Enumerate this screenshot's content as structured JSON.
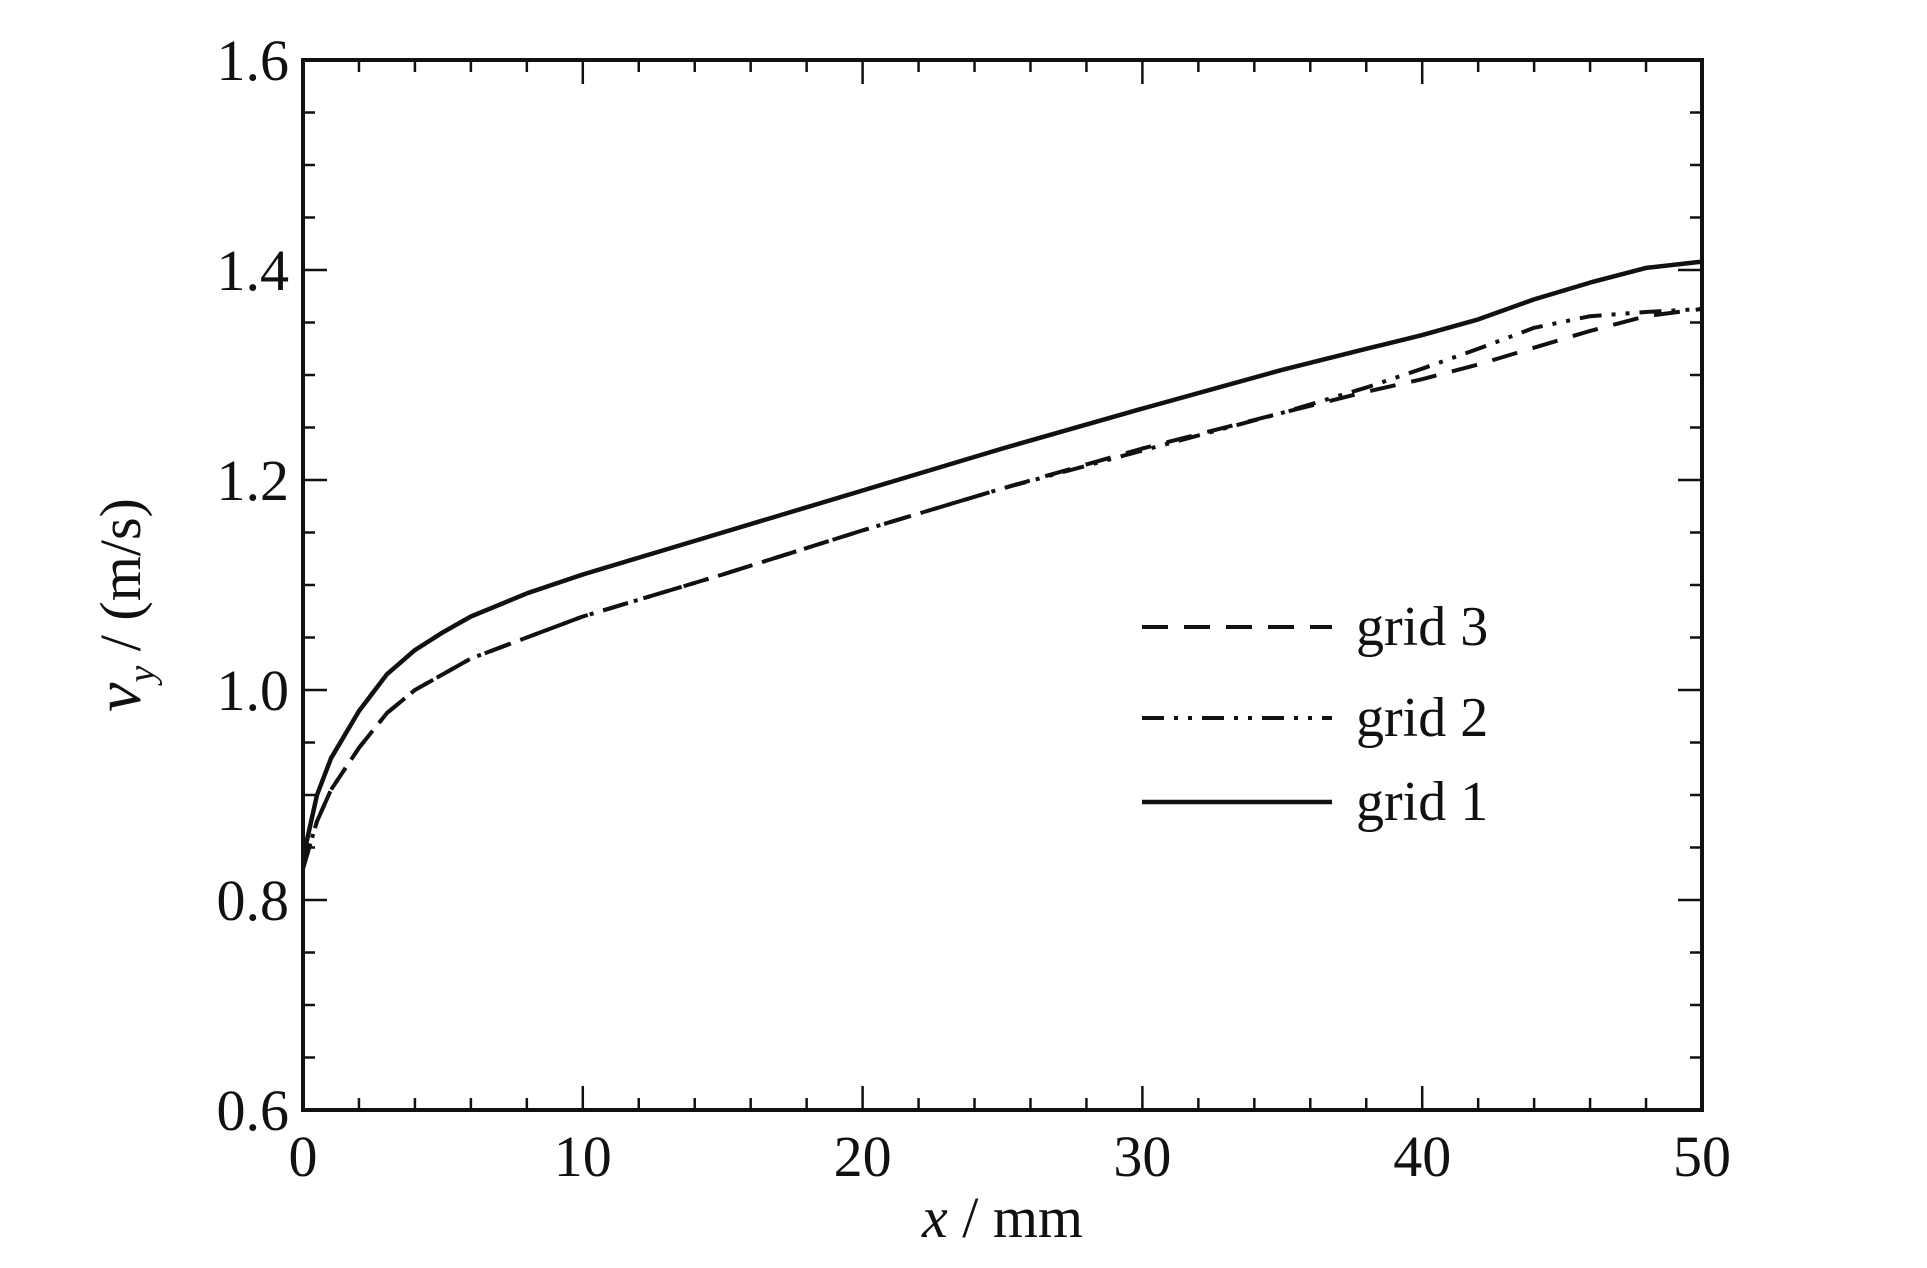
{
  "chart_data": {
    "type": "line",
    "xlabel": {
      "var": "x",
      "rest": " / mm"
    },
    "ylabel": {
      "var": "v",
      "sub": "y",
      "rest": " / (m/s)"
    },
    "xlim": [
      0,
      50
    ],
    "ylim": [
      0.6,
      1.6
    ],
    "xticks": [
      0,
      10,
      20,
      30,
      40,
      50
    ],
    "xtick_labels": [
      "0",
      "10",
      "20",
      "30",
      "40",
      "50"
    ],
    "yticks": [
      0.6,
      0.8,
      1.0,
      1.2,
      1.4,
      1.6
    ],
    "ytick_labels": [
      "0.6",
      "0.8",
      "1.0",
      "1.2",
      "1.4",
      "1.6"
    ],
    "grid": false,
    "legend_position": "right",
    "series": [
      {
        "name": "grid 3",
        "dash": "dashed",
        "x": [
          0,
          0.5,
          1,
          2,
          3,
          4,
          5,
          6,
          8,
          10,
          15,
          20,
          25,
          30,
          35,
          38,
          40,
          42,
          44,
          46,
          48,
          50
        ],
        "y": [
          0.83,
          0.875,
          0.905,
          0.945,
          0.978,
          1.0,
          1.015,
          1.03,
          1.05,
          1.07,
          1.11,
          1.152,
          1.192,
          1.23,
          1.264,
          1.284,
          1.296,
          1.31,
          1.326,
          1.342,
          1.356,
          1.363
        ]
      },
      {
        "name": "grid 2",
        "dash": "dashdotdot",
        "x": [
          0,
          0.5,
          1,
          2,
          3,
          4,
          5,
          6,
          8,
          10,
          15,
          20,
          25,
          30,
          35,
          38,
          40,
          42,
          44,
          46,
          48,
          50
        ],
        "y": [
          0.83,
          0.875,
          0.905,
          0.945,
          0.978,
          1.0,
          1.015,
          1.03,
          1.05,
          1.07,
          1.11,
          1.152,
          1.192,
          1.228,
          1.264,
          1.288,
          1.306,
          1.325,
          1.345,
          1.356,
          1.36,
          1.363
        ]
      },
      {
        "name": "grid 1",
        "dash": "solid",
        "x": [
          0,
          0.5,
          1,
          2,
          3,
          4,
          5,
          6,
          8,
          10,
          15,
          20,
          25,
          30,
          35,
          38,
          40,
          42,
          44,
          46,
          48,
          50
        ],
        "y": [
          0.84,
          0.9,
          0.935,
          0.98,
          1.015,
          1.038,
          1.055,
          1.07,
          1.092,
          1.11,
          1.15,
          1.19,
          1.23,
          1.268,
          1.305,
          1.325,
          1.338,
          1.353,
          1.372,
          1.388,
          1.402,
          1.408
        ]
      }
    ]
  }
}
